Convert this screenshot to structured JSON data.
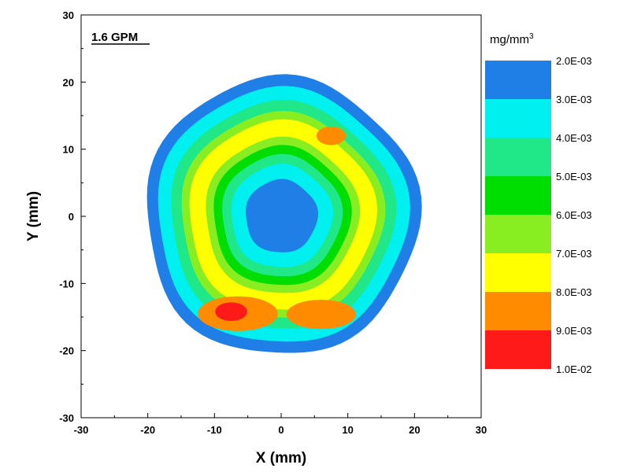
{
  "chart_data": {
    "type": "heatmap",
    "annotation": "1.6 GPM",
    "xlabel": "X (mm)",
    "ylabel": "Y (mm)",
    "xlim": [
      -30,
      30
    ],
    "ylim": [
      -30,
      30
    ],
    "xticks": [
      -30,
      -20,
      -10,
      0,
      10,
      20,
      30
    ],
    "yticks": [
      -30,
      -20,
      -10,
      0,
      10,
      20,
      30
    ],
    "grid": false,
    "colorbar": {
      "unit": "mg/mm",
      "unit_superscript": "3",
      "labels": [
        "2.0E-03",
        "3.0E-03",
        "4.0E-03",
        "5.0E-03",
        "6.0E-03",
        "7.0E-03",
        "8.0E-03",
        "9.0E-03",
        "1.0E-02"
      ],
      "colors": [
        "#1f7fe6",
        "#00f0f0",
        "#20e888",
        "#00dd00",
        "#88ee22",
        "#ffff00",
        "#ff8c00",
        "#ff1a1a"
      ]
    },
    "contour_levels": [
      {
        "color": "#1f7fe6",
        "outer_radius_mm": 20.5,
        "inner_radius_mm": 18.8
      },
      {
        "color": "#00f0f0",
        "outer_radius_mm": 18.8,
        "inner_radius_mm": 16.8
      },
      {
        "color": "#20e888",
        "outer_radius_mm": 16.8,
        "inner_radius_mm": 15.2
      },
      {
        "color": "#88ee22",
        "outer_radius_mm": 15.2,
        "inner_radius_mm": 14.0
      },
      {
        "color": "#ffff00",
        "outer_radius_mm": 14.0,
        "inner_radius_mm": 11.5
      },
      {
        "color": "#88ee22",
        "outer_radius_mm": 11.5,
        "inner_radius_mm": 10.3
      },
      {
        "color": "#00dd00",
        "outer_radius_mm": 10.3,
        "inner_radius_mm": 9.0
      },
      {
        "color": "#20e888",
        "outer_radius_mm": 9.0,
        "inner_radius_mm": 7.6
      },
      {
        "color": "#00f0f0",
        "outer_radius_mm": 7.6,
        "inner_radius_mm": 5.4
      },
      {
        "color": "#1f7fe6",
        "outer_radius_mm": 5.4,
        "inner_radius_mm": 0
      }
    ],
    "hotspots": [
      {
        "color": "#ff8c00",
        "cx": -6.5,
        "cy": -14.5,
        "rx": 6.0,
        "ry": 2.6
      },
      {
        "color": "#ff8c00",
        "cx": 6.0,
        "cy": -14.6,
        "rx": 5.2,
        "ry": 2.2
      },
      {
        "color": "#ff8c00",
        "cx": 7.5,
        "cy": 12.0,
        "rx": 2.2,
        "ry": 1.4
      },
      {
        "color": "#ff1a1a",
        "cx": -7.5,
        "cy": -14.2,
        "rx": 2.4,
        "ry": 1.4
      }
    ]
  }
}
